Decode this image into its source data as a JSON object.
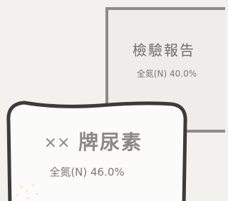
{
  "report": {
    "title": "檢驗報告",
    "content": "全氮(N) 40.0%"
  },
  "bag": {
    "brand_prefix": "××",
    "brand": "牌尿素",
    "content": "全氮(N) 46.0%"
  }
}
